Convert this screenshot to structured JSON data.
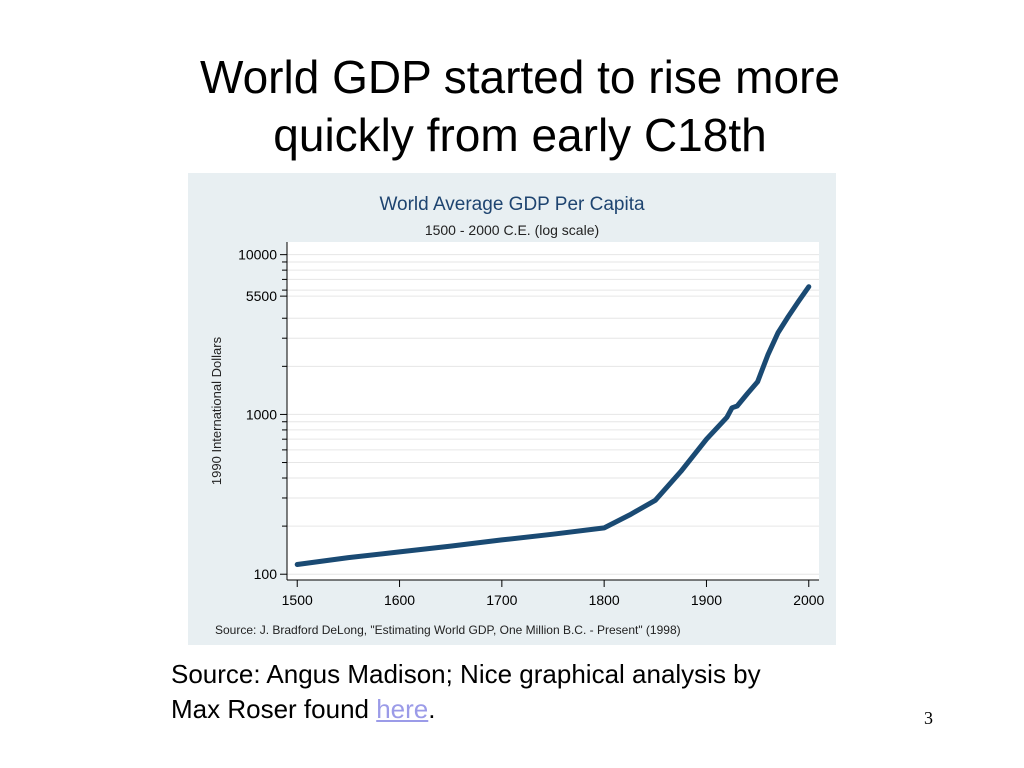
{
  "slide": {
    "title_line1": "World GDP started to rise more",
    "title_line2": "quickly from early C18th",
    "source_prefix": "Source: Angus Madison; Nice graphical analysis by",
    "source_line2": "Max Roser found ",
    "link_text": "here",
    "source_suffix": ".",
    "page_number": "3"
  },
  "colors": {
    "figure_background": "#e8eff2",
    "plot_background": "#ffffff",
    "series_line": "#1a4a73",
    "title_text": "#1e4470",
    "link": "#9b9be8"
  },
  "chart_data": {
    "type": "line",
    "title": "World Average GDP Per Capita",
    "subtitle": "1500 - 2000 C.E. (log scale)",
    "ylabel": "1990 International Dollars",
    "xlabel": "",
    "yscale": "log",
    "xlim": [
      1490,
      2010
    ],
    "ylim": [
      92,
      12000
    ],
    "x_ticks": [
      1500,
      1600,
      1700,
      1800,
      1900,
      2000
    ],
    "x_tick_labels": [
      "1500",
      "1600",
      "1700",
      "1800",
      "1900",
      "2000"
    ],
    "y_ticks_labeled": [
      100,
      1000,
      5500,
      10000
    ],
    "y_tick_labels": [
      "100",
      "1000",
      "5500",
      "10000"
    ],
    "y_ticks_minor": [
      200,
      300,
      400,
      500,
      600,
      700,
      800,
      900,
      2000,
      3000,
      4000,
      6000,
      7000,
      8000,
      9000
    ],
    "grid": true,
    "source_note": "Source: J. Bradford DeLong, \"Estimating World GDP, One Million B.C. - Present\" (1998)",
    "series": [
      {
        "x": [
          1500,
          1550,
          1600,
          1650,
          1700,
          1750,
          1800,
          1825,
          1850,
          1875,
          1900,
          1920,
          1925,
          1930,
          1940,
          1950,
          1960,
          1970,
          1980,
          1990,
          2000
        ],
        "y": [
          115,
          127,
          138,
          150,
          164,
          178,
          195,
          235,
          290,
          440,
          700,
          960,
          1100,
          1130,
          1350,
          1600,
          2350,
          3250,
          4100,
          5100,
          6300
        ]
      }
    ]
  }
}
